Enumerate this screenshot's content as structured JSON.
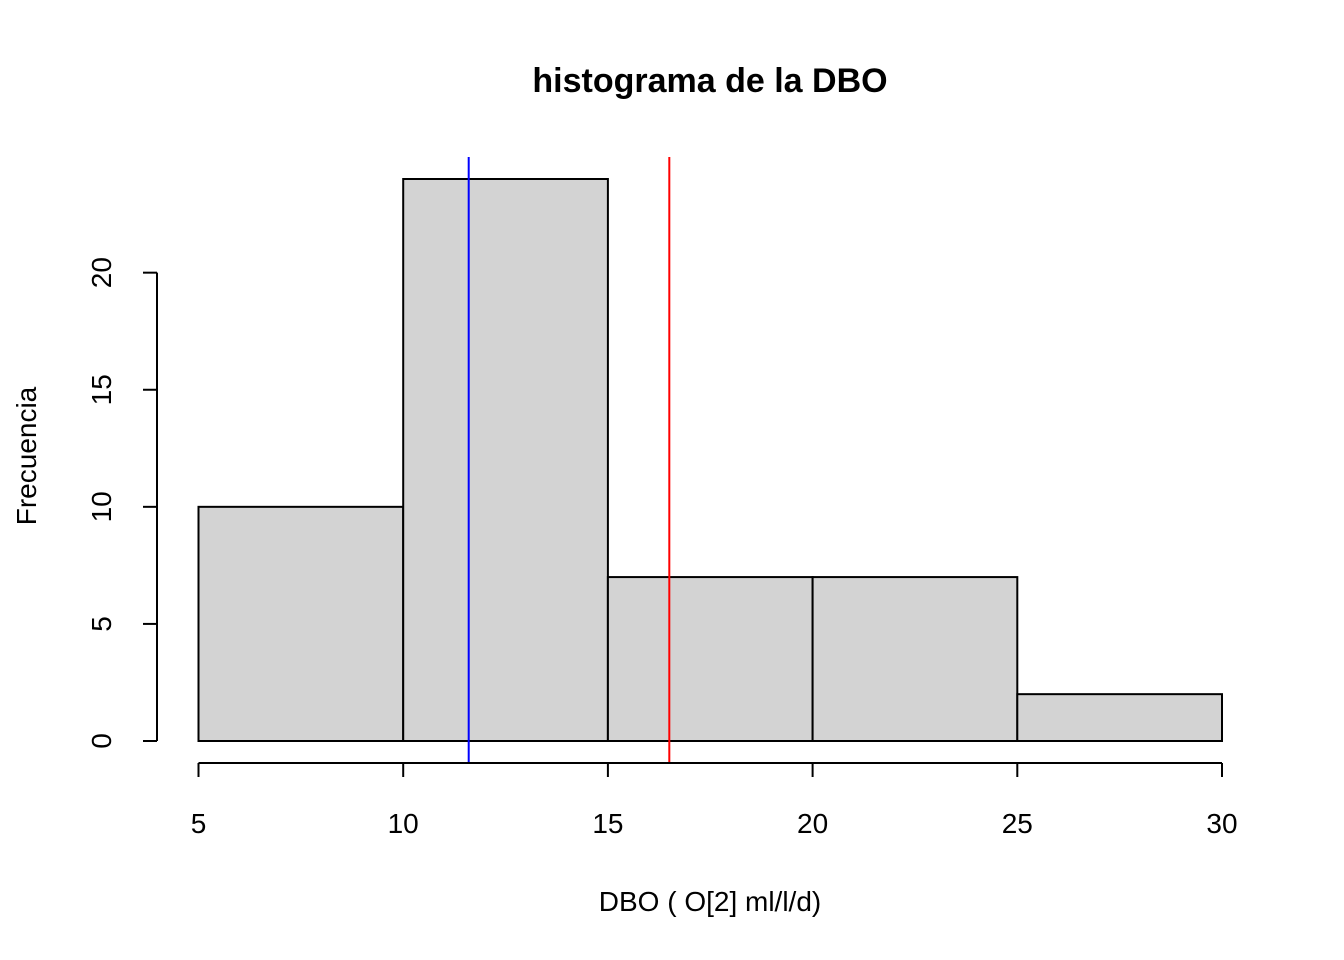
{
  "chart_data": {
    "type": "bar",
    "subtype": "histogram",
    "title": "histograma de la DBO",
    "xlabel": "DBO ( O[2] ml/l/d)",
    "ylabel": "Frecuencia",
    "bins": [
      {
        "start": 5,
        "end": 10,
        "count": 10
      },
      {
        "start": 10,
        "end": 15,
        "count": 24
      },
      {
        "start": 15,
        "end": 20,
        "count": 7
      },
      {
        "start": 20,
        "end": 25,
        "count": 7
      },
      {
        "start": 25,
        "end": 30,
        "count": 2
      }
    ],
    "xlim": [
      5,
      30
    ],
    "ylim": [
      0,
      24
    ],
    "x_ticks": [
      5,
      10,
      15,
      20,
      25,
      30
    ],
    "y_ticks": [
      0,
      5,
      10,
      15,
      20
    ],
    "bar_color": "#d3d3d3",
    "grid": false,
    "vlines": [
      {
        "x": 11.6,
        "color": "#0000ff"
      },
      {
        "x": 16.5,
        "color": "#ff0000"
      }
    ]
  }
}
